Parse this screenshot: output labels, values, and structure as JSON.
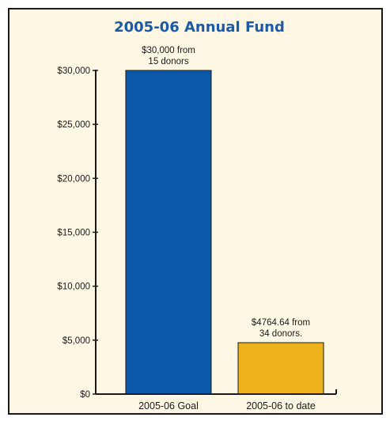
{
  "chart_data": {
    "type": "bar",
    "title": "2005-06 Annual Fund",
    "categories": [
      "2005-06 Goal",
      "2005-06 to date"
    ],
    "values": [
      30000,
      4764.64
    ],
    "data_labels": [
      [
        "$30,000 from",
        "15 donors"
      ],
      [
        "$4764.64 from",
        "34 donors."
      ]
    ],
    "y_ticks": [
      0,
      5000,
      10000,
      15000,
      20000,
      25000,
      30000
    ],
    "y_tick_labels": [
      "$0",
      "$5,000",
      "$10,000",
      "$15,000",
      "$20,000",
      "$25,000",
      "$30,000"
    ],
    "ylim": [
      0,
      30000
    ],
    "xlabel": "",
    "ylabel": "",
    "grid": false,
    "colors": {
      "background": "#fdf7e3",
      "title": "#1a5aa8",
      "bars": [
        "#0c58a8",
        "#eeb21a"
      ],
      "axis": "#1a1a1a"
    }
  }
}
